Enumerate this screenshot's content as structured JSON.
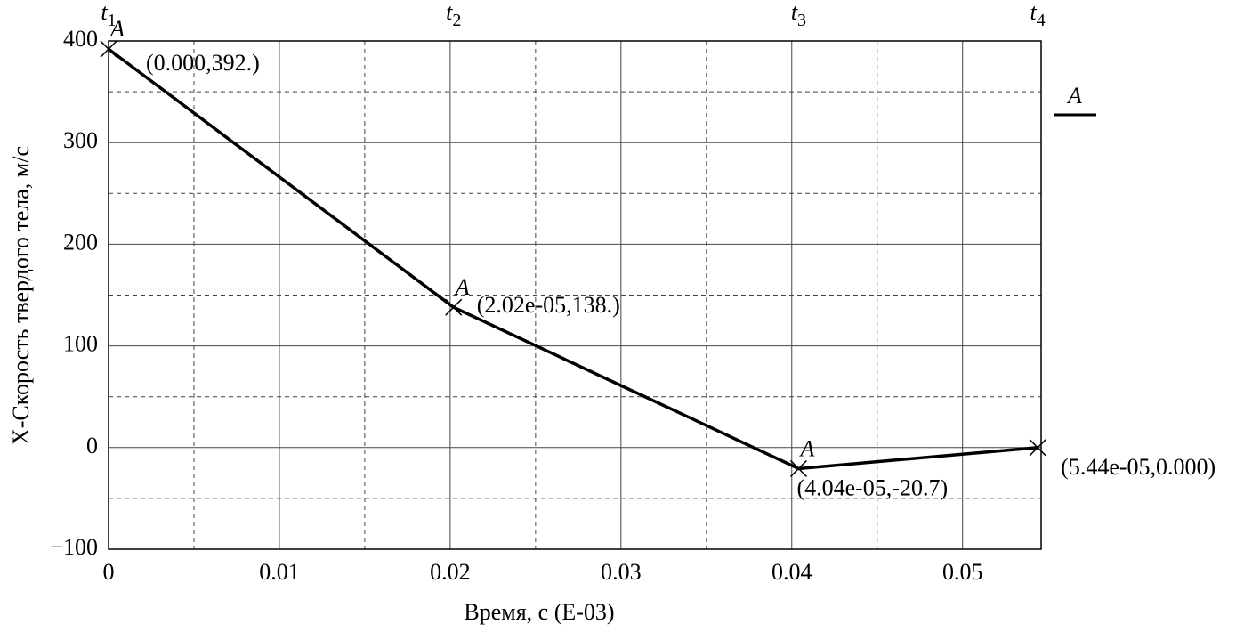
{
  "chart_data": {
    "type": "line",
    "x_label": "Время, с (E-03)",
    "y_label": "X-Скорость твердого тела, м/с",
    "x": [
      0,
      0.0202,
      0.0404,
      0.0544
    ],
    "series": [
      {
        "name": "A",
        "color": "#000000",
        "values": [
          392,
          138,
          -20.7,
          0
        ],
        "value_labels": [
          "(0.000,392.)",
          "(2.02e-05,138.)",
          "(4.04e-05,-20.7)",
          "(5.44e-05,0.000)"
        ],
        "point_labels": [
          "A",
          "A",
          "A",
          null
        ]
      }
    ],
    "time_markers": [
      {
        "letter": "t",
        "index": "1"
      },
      {
        "letter": "t",
        "index": "2"
      },
      {
        "letter": "t",
        "index": "3"
      },
      {
        "letter": "t",
        "index": "4"
      }
    ],
    "xlim": [
      0,
      0.0546
    ],
    "ylim": [
      -100,
      400
    ],
    "xticks": [
      0,
      0.01,
      0.02,
      0.03,
      0.04,
      0.05
    ],
    "yticks": [
      {
        "value": -100,
        "label": "−100"
      },
      0,
      100,
      200,
      300,
      400
    ],
    "minor_xticks": [
      0.005,
      0.015,
      0.025,
      0.035,
      0.045
    ],
    "minor_yticks": [
      -50,
      50,
      150,
      250,
      350
    ],
    "grid": true,
    "legend": "right"
  }
}
